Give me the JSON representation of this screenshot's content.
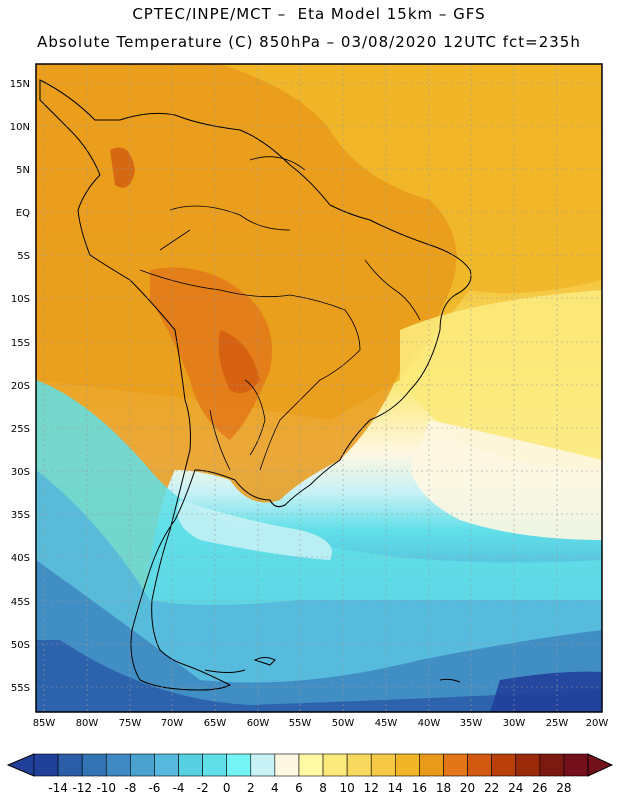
{
  "header": {
    "line1": "CPTEC/INPE/MCT –  Eta Model 15km – GFS",
    "line2": "Absolute Temperature (C) 850hPa – 03/08/2020 12UTC fct=235h"
  },
  "map": {
    "lat_labels": [
      "15N",
      "10N",
      "5N",
      "EQ",
      "5S",
      "10S",
      "15S",
      "20S",
      "25S",
      "30S",
      "35S",
      "40S",
      "45S",
      "50S",
      "55S"
    ],
    "lon_labels": [
      "85W",
      "80W",
      "75W",
      "70W",
      "65W",
      "60W",
      "55W",
      "50W",
      "45W",
      "40W",
      "35W",
      "30W",
      "25W",
      "20W"
    ]
  },
  "colorbar": {
    "ticks": [
      "-14",
      "-12",
      "-10",
      "-8",
      "-6",
      "-4",
      "-2",
      "0",
      "2",
      "4",
      "6",
      "8",
      "10",
      "12",
      "14",
      "16",
      "18",
      "20",
      "22",
      "24",
      "26",
      "28"
    ],
    "colors": [
      "#21409a",
      "#2b5da8",
      "#3374b5",
      "#3f8ac2",
      "#4aa3cf",
      "#55b8dc",
      "#56cfe1",
      "#60dfe8",
      "#74f4f4",
      "#c9f2f6",
      "#fef7e1",
      "#fffaa3",
      "#fcea7c",
      "#f8d95f",
      "#f5c945",
      "#f1b628",
      "#e99a1a",
      "#e27618",
      "#d25a10",
      "#b93f0b",
      "#9a2a0a",
      "#7a1a10",
      "#73101b"
    ]
  }
}
